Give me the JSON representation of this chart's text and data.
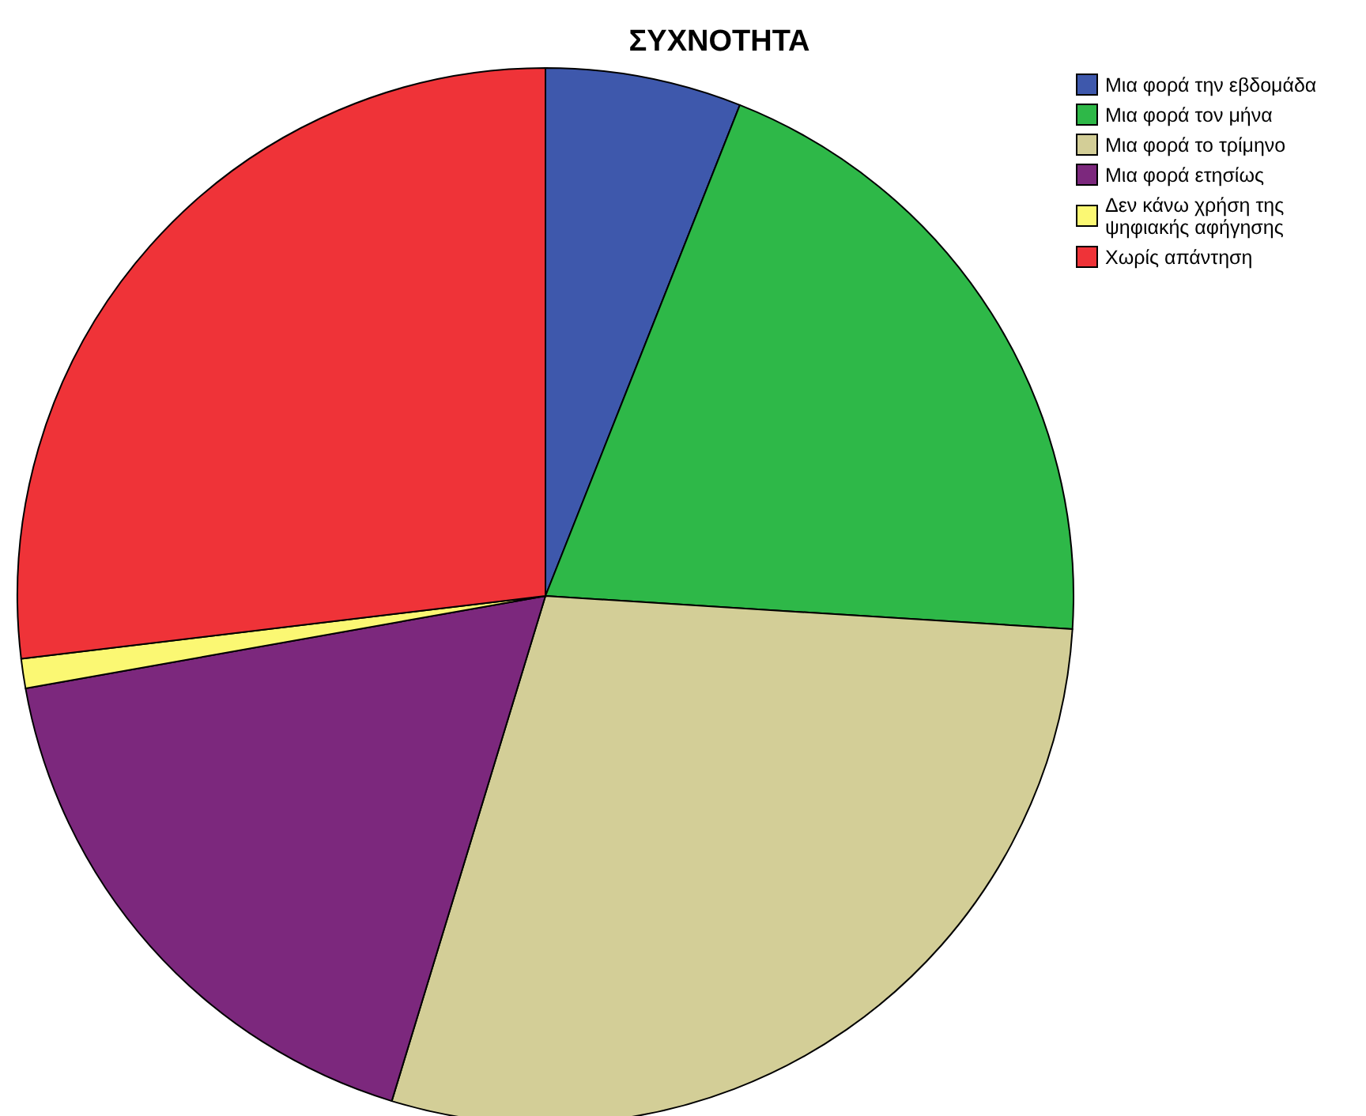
{
  "chart_data": {
    "type": "pie",
    "title": "ΣΥΧΝΟΤΗΤΑ",
    "categories": [
      "Μια φορά την εβδομάδα",
      "Μια φορά τον μήνα",
      "Μια φορά το τρίμηνο",
      "Μια φορά ετησίως",
      "Δεν κάνω χρήση της ψηφιακής αφήγησης",
      "Χωρίς απάντηση"
    ],
    "values": [
      6.0,
      20.0,
      28.7,
      17.5,
      0.9,
      26.9
    ],
    "colors": [
      "#3e58ac",
      "#2eb848",
      "#d3ce97",
      "#7c287d",
      "#fbf873",
      "#ef3338"
    ],
    "legend": "top right"
  }
}
